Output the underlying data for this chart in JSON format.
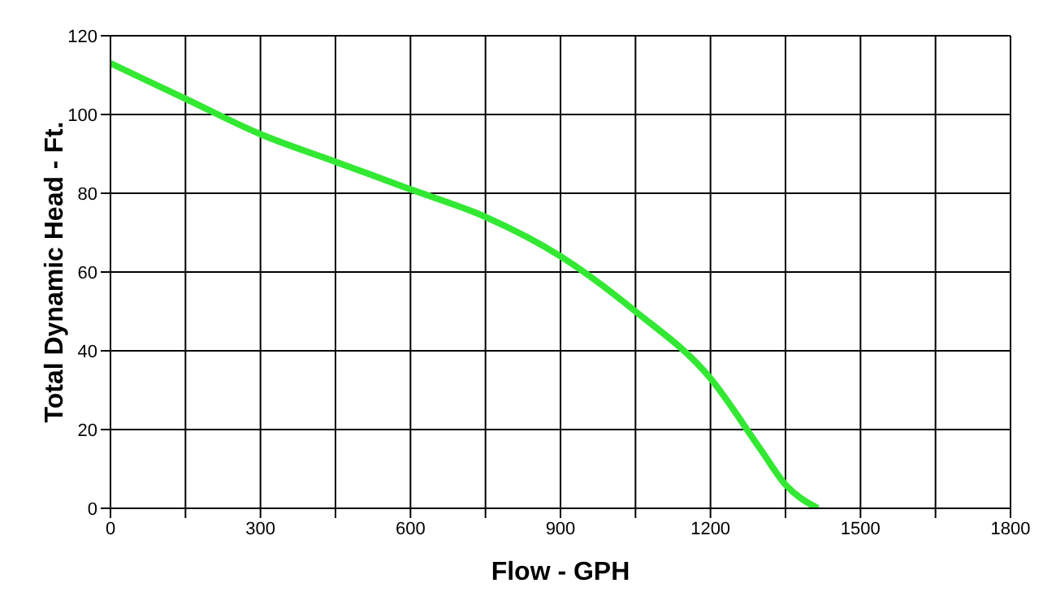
{
  "chart_data": {
    "type": "line",
    "xlabel": "Flow - GPH",
    "ylabel": "Total Dynamic Head - Ft.",
    "x": [
      0,
      150,
      300,
      450,
      600,
      750,
      900,
      1050,
      1200,
      1300,
      1350,
      1415
    ],
    "series": [
      {
        "color": "#33e833",
        "values": [
          113,
          104,
          95,
          88,
          81,
          74,
          64,
          50,
          33,
          15,
          6,
          0
        ]
      }
    ],
    "xlim": [
      0,
      1800
    ],
    "xticks": [
      0,
      {
        "value": 150,
        "label": null
      },
      300,
      {
        "value": 450,
        "label": null
      },
      600,
      {
        "value": 750,
        "label": null
      },
      900,
      {
        "value": 1050,
        "label": null
      },
      1200,
      {
        "value": 1350,
        "label": null
      },
      1500,
      {
        "value": 1650,
        "label": null
      },
      1800
    ],
    "ylim": [
      0,
      120
    ],
    "yticks": [
      0,
      20,
      40,
      60,
      80,
      100,
      120
    ],
    "grid": true,
    "marker": "none",
    "line_style": "solid"
  }
}
